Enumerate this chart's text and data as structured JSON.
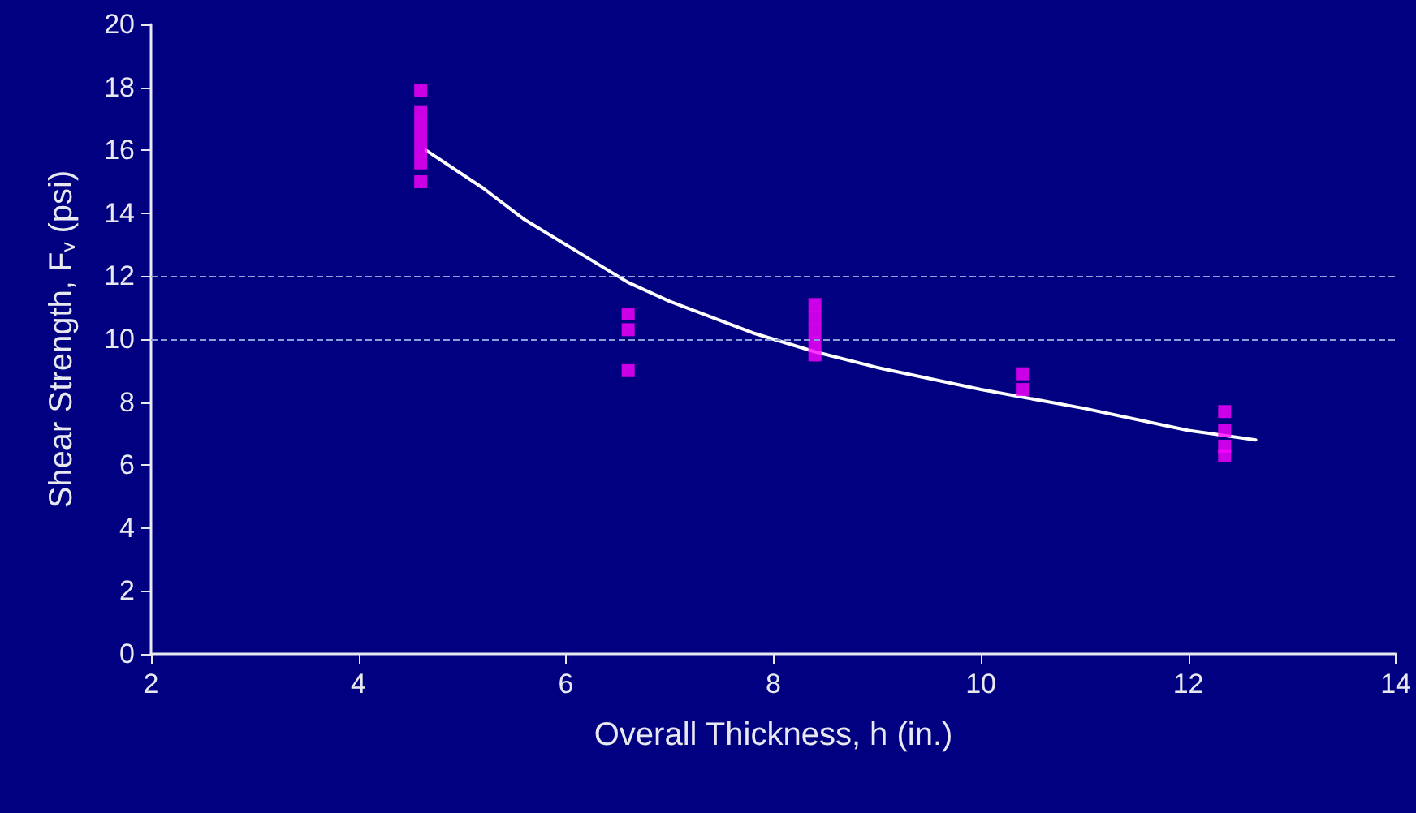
{
  "chart_data": {
    "type": "scatter",
    "xlabel": "Overall Thickness, h (in.)",
    "ylabel": "Shear Strength, F$_{v}$ (psi)",
    "xlim": [
      2,
      14
    ],
    "xticks": [
      2,
      4,
      6,
      8,
      10,
      12,
      14
    ],
    "ylim": [
      0,
      20
    ],
    "yticks": [
      0,
      2,
      4,
      6,
      8,
      10,
      12,
      14,
      16,
      18,
      20
    ],
    "grid": false,
    "marker": "square",
    "series": [
      {
        "color": "#ff00ff",
        "x": [
          4.6,
          4.6,
          4.6,
          4.6,
          4.6,
          4.6,
          4.6,
          6.6,
          6.6,
          6.6,
          8.4,
          8.4,
          8.4,
          8.4,
          8.4,
          10.4,
          10.4,
          12.35,
          12.35,
          12.35,
          12.35
        ],
        "values": [
          17.9,
          17.2,
          16.8,
          16.4,
          16.0,
          15.6,
          15.0,
          10.8,
          10.3,
          9.0,
          11.1,
          10.7,
          10.3,
          9.9,
          9.5,
          8.9,
          8.4,
          7.7,
          7.1,
          6.6,
          6.3
        ]
      },
      {
        "type": "line",
        "color": "#ffffff",
        "marker": "none",
        "line_style": "solid",
        "x": [
          4.65,
          5.2,
          5.6,
          6,
          6.6,
          7,
          7.8,
          8.4,
          9,
          10,
          11,
          12,
          12.65
        ],
        "values": [
          16.0,
          14.8,
          13.8,
          13.0,
          11.8,
          11.2,
          10.2,
          9.6,
          9.1,
          8.4,
          7.8,
          7.1,
          6.8
        ]
      }
    ],
    "ref_lines": [
      {
        "axis": "y",
        "value": 10,
        "color": "#8da0dd",
        "line_style": "dashed"
      },
      {
        "axis": "y",
        "value": 12,
        "color": "#8da0dd",
        "line_style": "dashed"
      }
    ]
  }
}
